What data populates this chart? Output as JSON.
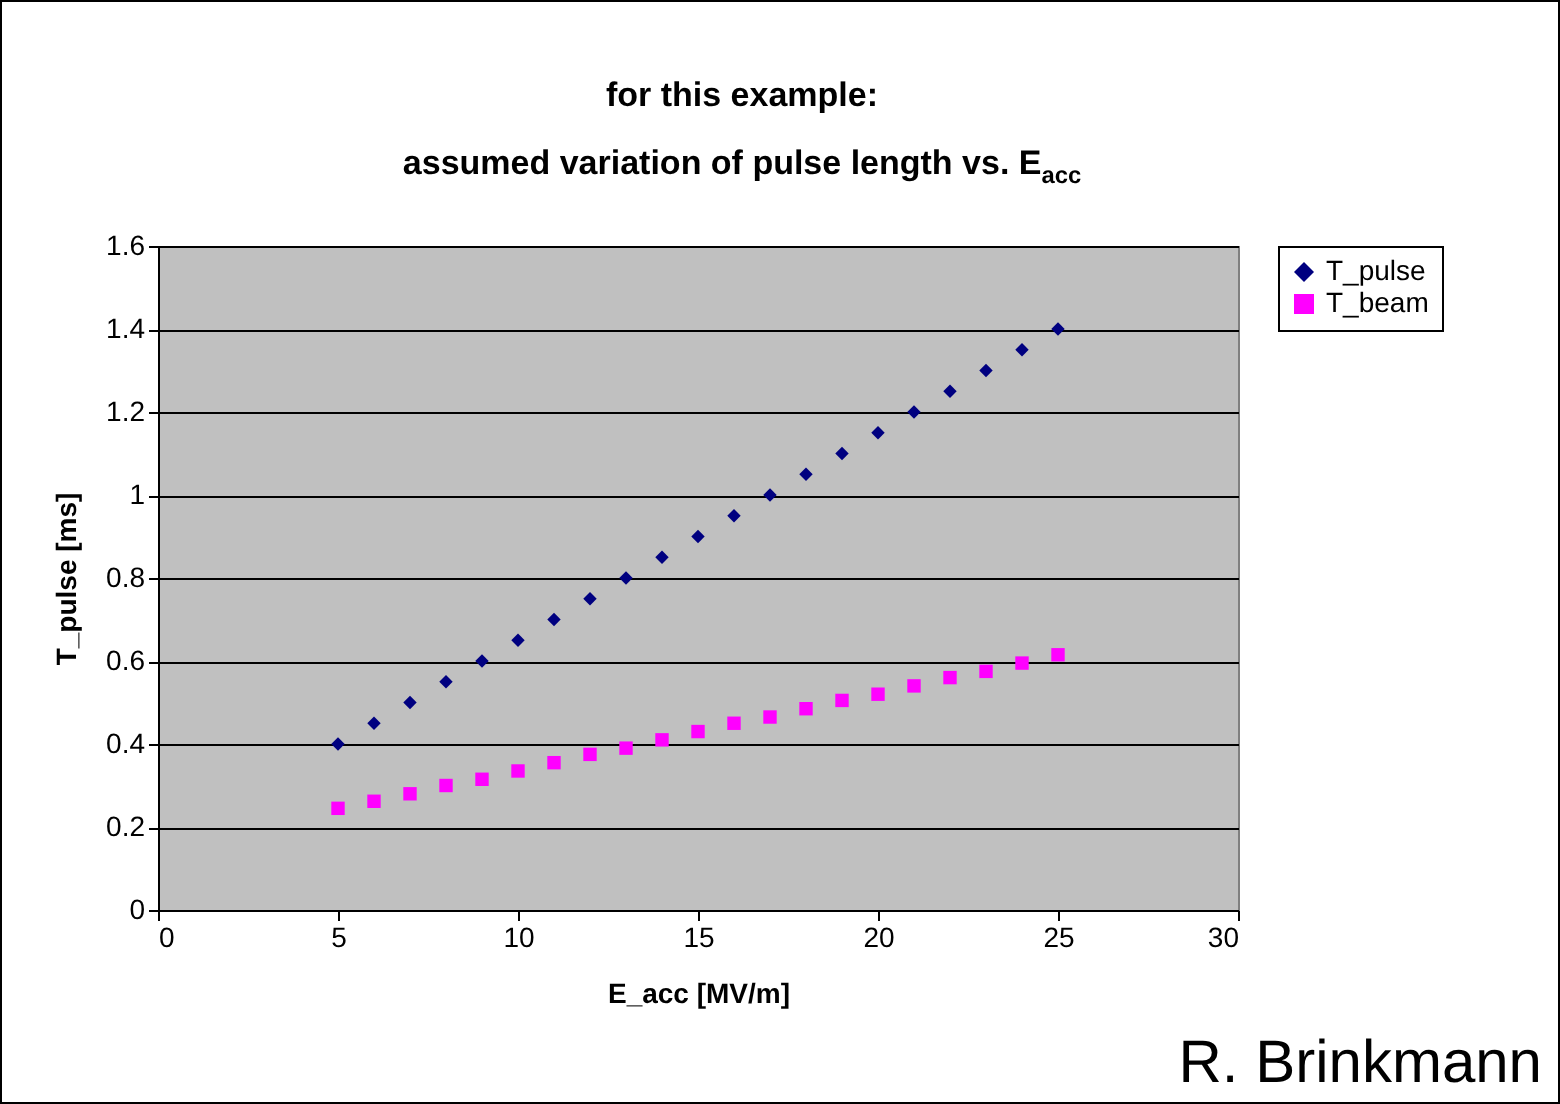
{
  "chart_data": {
    "type": "scatter",
    "title": "for this example:\nassumed variation of pulse length vs. E$_{acc}$",
    "xlabel": "E_acc [MV/m]",
    "ylabel": "T_pulse [ms]",
    "x": [
      5,
      6,
      7,
      8,
      9,
      10,
      11,
      12,
      13,
      14,
      15,
      16,
      17,
      18,
      19,
      20,
      21,
      22,
      23,
      24,
      25
    ],
    "series": [
      {
        "name": "T_pulse",
        "color": "#000080",
        "marker": "diamond",
        "values": [
          0.4,
          0.45,
          0.5,
          0.55,
          0.6,
          0.65,
          0.7,
          0.75,
          0.8,
          0.85,
          0.9,
          0.95,
          1.0,
          1.05,
          1.1,
          1.15,
          1.2,
          1.25,
          1.3,
          1.35,
          1.4
        ]
      },
      {
        "name": "T_beam",
        "color": "#ff00ff",
        "marker": "square",
        "values": [
          0.245,
          0.262,
          0.28,
          0.3,
          0.315,
          0.335,
          0.355,
          0.375,
          0.39,
          0.41,
          0.43,
          0.45,
          0.465,
          0.485,
          0.505,
          0.52,
          0.54,
          0.56,
          0.575,
          0.595,
          0.615
        ]
      }
    ],
    "xlim": [
      0,
      30
    ],
    "xticks": [
      0,
      5,
      10,
      15,
      20,
      25,
      30
    ],
    "ylim": [
      0,
      1.6
    ],
    "yticks": [
      0,
      0.2,
      0.4,
      0.6,
      0.8,
      1,
      1.2,
      1.4,
      1.6
    ],
    "grid": "y",
    "legend": "right",
    "annotations": [
      "R. Brinkmann"
    ]
  }
}
